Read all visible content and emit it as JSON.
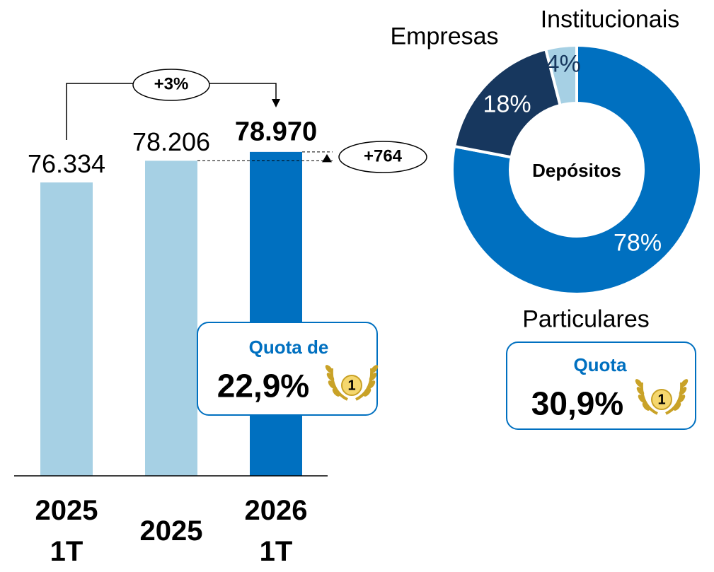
{
  "chart_data": [
    {
      "type": "bar",
      "categories": [
        "2025\n1T",
        "2025",
        "2026\n1T"
      ],
      "values": [
        76334,
        78206,
        78970
      ],
      "value_labels": [
        "76.334",
        "78.206",
        "78.970"
      ],
      "colors": [
        "#a6d0e4",
        "#a6d0e4",
        "#0070c0"
      ],
      "ylim": [
        51000,
        80000
      ],
      "annotations": {
        "growth_pct": "+3%",
        "growth_abs": "+764",
        "quota_label": "Quota de",
        "quota_value": "22,9%",
        "rank": "1"
      }
    },
    {
      "type": "donut",
      "title": "Depósitos",
      "categories": [
        "Particulares",
        "Empresas",
        "Institucionais"
      ],
      "values": [
        78,
        18,
        4
      ],
      "value_labels": [
        "78%",
        "18%",
        "4%"
      ],
      "colors": [
        "#0070c0",
        "#17375e",
        "#a6d0e4"
      ],
      "label_colors": [
        "#ffffff",
        "#ffffff",
        "#17375e"
      ],
      "annotations": {
        "quota_label": "Quota",
        "quota_value": "30,9%",
        "rank": "1"
      }
    }
  ]
}
